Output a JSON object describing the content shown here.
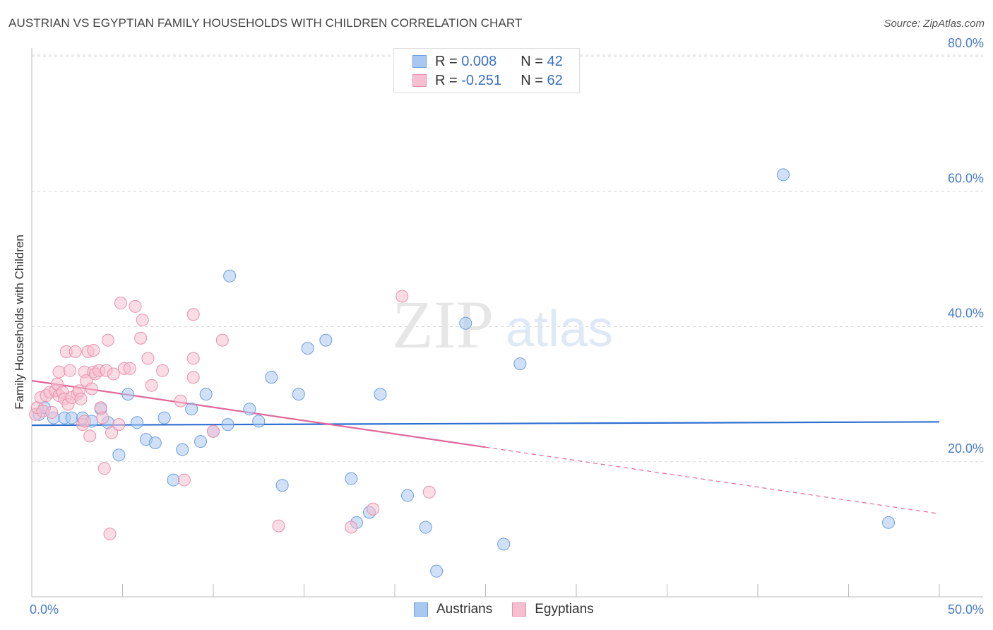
{
  "title": "AUSTRIAN VS EGYPTIAN FAMILY HOUSEHOLDS WITH CHILDREN CORRELATION CHART",
  "source": "Source: ZipAtlas.com",
  "watermark": {
    "zip": "ZIP",
    "atlas": "atlas"
  },
  "legend": {
    "rows": [
      {
        "r_label": "R =",
        "r_value": "0.008",
        "n_label": "N =",
        "n_value": "42",
        "color": "#a9c8f0",
        "border": "#6d9ee0"
      },
      {
        "r_label": "R =",
        "r_value": "-0.251",
        "n_label": "N =",
        "n_value": "62",
        "color": "#f6bfd0",
        "border": "#e891ac"
      }
    ]
  },
  "bottom_legend": [
    {
      "label": "Austrians",
      "color": "#a9c8f0",
      "border": "#6d9ee0"
    },
    {
      "label": "Egyptians",
      "color": "#f6bfd0",
      "border": "#e891ac"
    }
  ],
  "chart_data": {
    "type": "scatter",
    "title": "AUSTRIAN VS EGYPTIAN FAMILY HOUSEHOLDS WITH CHILDREN CORRELATION CHART",
    "xlabel": "",
    "ylabel": "Family Households with Children",
    "xlim": [
      0,
      50
    ],
    "ylim": [
      0,
      80
    ],
    "x_tick_labels": [
      "0.0%",
      "50.0%"
    ],
    "y_ticks": [
      20,
      40,
      60,
      80
    ],
    "y_tick_labels": [
      "20.0%",
      "40.0%",
      "60.0%",
      "80.0%"
    ],
    "grid": "horizontal dashed",
    "series": [
      {
        "name": "Austrians",
        "color": "#a9c8f0",
        "border": "#6d9ee0",
        "trend": {
          "x": [
            0,
            50
          ],
          "y": [
            25.4,
            25.9
          ],
          "color": "#2d6fd1",
          "dashed_from": null
        },
        "points": [
          [
            0.4,
            27.0
          ],
          [
            0.7,
            28.0
          ],
          [
            1.2,
            26.5
          ],
          [
            1.8,
            26.5
          ],
          [
            2.2,
            26.5
          ],
          [
            2.8,
            26.5
          ],
          [
            3.3,
            26.0
          ],
          [
            3.8,
            27.8
          ],
          [
            4.2,
            25.8
          ],
          [
            4.8,
            21.0
          ],
          [
            5.3,
            30.0
          ],
          [
            5.8,
            25.8
          ],
          [
            6.3,
            23.3
          ],
          [
            6.8,
            22.8
          ],
          [
            7.3,
            26.5
          ],
          [
            7.8,
            17.3
          ],
          [
            8.3,
            21.8
          ],
          [
            8.8,
            27.8
          ],
          [
            9.3,
            23.0
          ],
          [
            9.6,
            30.0
          ],
          [
            10.0,
            24.5
          ],
          [
            10.8,
            25.5
          ],
          [
            10.9,
            47.5
          ],
          [
            12.0,
            27.8
          ],
          [
            12.5,
            26.0
          ],
          [
            13.2,
            32.5
          ],
          [
            13.8,
            16.5
          ],
          [
            14.7,
            30.0
          ],
          [
            15.2,
            36.8
          ],
          [
            16.2,
            38.0
          ],
          [
            17.6,
            17.5
          ],
          [
            17.9,
            11.0
          ],
          [
            18.6,
            12.5
          ],
          [
            19.2,
            30.0
          ],
          [
            20.7,
            15.0
          ],
          [
            21.7,
            10.3
          ],
          [
            22.3,
            3.8
          ],
          [
            23.9,
            40.5
          ],
          [
            26.0,
            7.8
          ],
          [
            26.9,
            34.5
          ],
          [
            41.4,
            62.5
          ],
          [
            47.2,
            11.0
          ]
        ]
      },
      {
        "name": "Egyptians",
        "color": "#f6bfd0",
        "border": "#e891ac",
        "trend": {
          "x": [
            0,
            50
          ],
          "y": [
            32.0,
            12.3
          ],
          "color": "#e0679a",
          "dashed_from": 25
        },
        "points": [
          [
            0.2,
            27.0
          ],
          [
            0.3,
            28.0
          ],
          [
            0.5,
            29.5
          ],
          [
            0.6,
            27.5
          ],
          [
            0.8,
            29.8
          ],
          [
            1.0,
            30.3
          ],
          [
            1.1,
            27.3
          ],
          [
            1.3,
            30.5
          ],
          [
            1.5,
            29.8
          ],
          [
            1.4,
            31.5
          ],
          [
            1.5,
            33.3
          ],
          [
            1.7,
            30.3
          ],
          [
            1.8,
            29.3
          ],
          [
            1.9,
            36.3
          ],
          [
            2.0,
            28.5
          ],
          [
            2.1,
            33.5
          ],
          [
            2.2,
            29.5
          ],
          [
            2.4,
            36.3
          ],
          [
            2.5,
            30.0
          ],
          [
            2.6,
            30.5
          ],
          [
            2.7,
            29.3
          ],
          [
            2.8,
            25.5
          ],
          [
            2.9,
            33.3
          ],
          [
            3.0,
            32.0
          ],
          [
            3.1,
            36.3
          ],
          [
            3.2,
            23.8
          ],
          [
            3.3,
            30.8
          ],
          [
            3.4,
            36.5
          ],
          [
            3.4,
            33.3
          ],
          [
            3.5,
            33.0
          ],
          [
            3.7,
            33.5
          ],
          [
            3.8,
            28.0
          ],
          [
            3.9,
            26.5
          ],
          [
            4.0,
            19.0
          ],
          [
            4.1,
            33.5
          ],
          [
            4.2,
            38.0
          ],
          [
            4.3,
            9.3
          ],
          [
            4.4,
            24.3
          ],
          [
            4.5,
            33.0
          ],
          [
            4.8,
            25.5
          ],
          [
            4.9,
            43.5
          ],
          [
            5.1,
            33.8
          ],
          [
            5.4,
            33.8
          ],
          [
            5.7,
            43.0
          ],
          [
            6.0,
            38.3
          ],
          [
            6.1,
            41.0
          ],
          [
            6.4,
            35.3
          ],
          [
            6.6,
            31.3
          ],
          [
            7.2,
            33.5
          ],
          [
            8.2,
            29.0
          ],
          [
            8.4,
            17.3
          ],
          [
            8.9,
            32.5
          ],
          [
            8.9,
            35.3
          ],
          [
            8.9,
            41.8
          ],
          [
            10.0,
            24.5
          ],
          [
            10.5,
            38.0
          ],
          [
            13.6,
            10.5
          ],
          [
            17.6,
            10.3
          ],
          [
            18.8,
            13.0
          ],
          [
            20.4,
            44.5
          ],
          [
            21.9,
            15.5
          ],
          [
            2.9,
            26.0
          ]
        ]
      }
    ]
  }
}
